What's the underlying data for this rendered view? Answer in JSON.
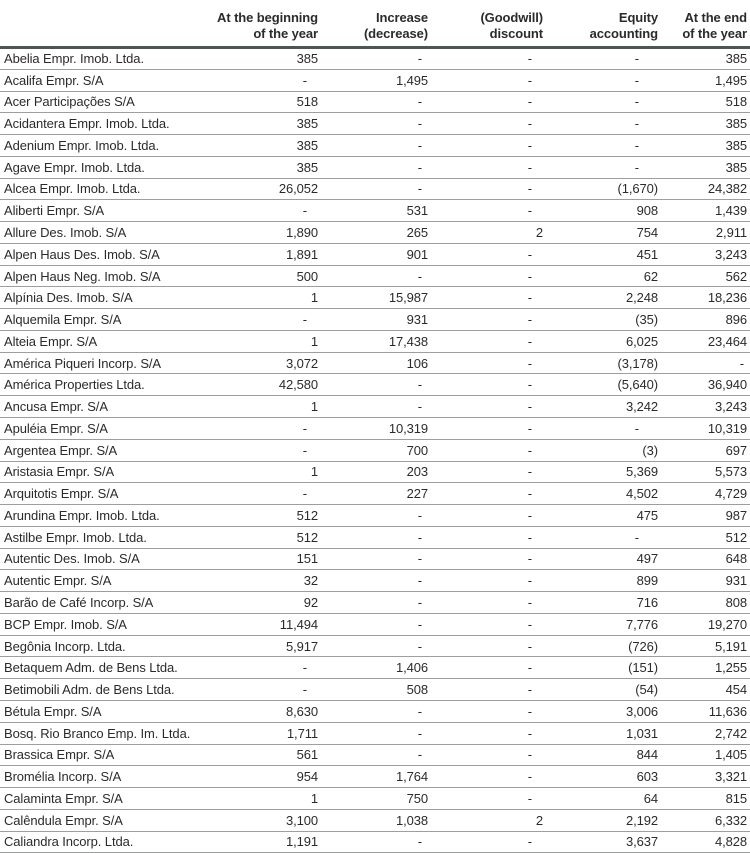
{
  "colors": {
    "text": "#2b2b2b",
    "header_rule": "#4d5751",
    "row_rule": "#9aa09e",
    "bg": "#ffffff"
  },
  "table": {
    "headers": {
      "name": "",
      "beginning": "At the beginning\nof the year",
      "increase": "Increase\n(decrease)",
      "goodwill": "(Goodwill)\ndiscount",
      "equity": "Equity\naccounting",
      "end": "At the end\nof the year"
    },
    "rows": [
      {
        "name": "Abelia Empr. Imob. Ltda.",
        "values": [
          "385",
          "-",
          "-",
          "-",
          "385"
        ]
      },
      {
        "name": "Acalifa Empr. S/A",
        "values": [
          "-",
          "1,495",
          "-",
          "-",
          "1,495"
        ]
      },
      {
        "name": "Acer Participações S/A",
        "values": [
          "518",
          "-",
          "-",
          "-",
          "518"
        ]
      },
      {
        "name": "Acidantera Empr. Imob. Ltda.",
        "values": [
          "385",
          "-",
          "-",
          "-",
          "385"
        ]
      },
      {
        "name": "Adenium Empr. Imob. Ltda.",
        "values": [
          "385",
          "-",
          "-",
          "-",
          "385"
        ]
      },
      {
        "name": "Agave Empr. Imob. Ltda.",
        "values": [
          "385",
          "-",
          "-",
          "-",
          "385"
        ]
      },
      {
        "name": "Alcea Empr. Imob. Ltda.",
        "values": [
          "26,052",
          "-",
          "-",
          "(1,670)",
          "24,382"
        ]
      },
      {
        "name": "Aliberti Empr. S/A",
        "values": [
          "-",
          "531",
          "-",
          "908",
          "1,439"
        ]
      },
      {
        "name": "Allure Des. Imob. S/A",
        "values": [
          "1,890",
          "265",
          "2",
          "754",
          "2,911"
        ]
      },
      {
        "name": "Alpen Haus Des. Imob. S/A",
        "values": [
          "1,891",
          "901",
          "-",
          "451",
          "3,243"
        ]
      },
      {
        "name": "Alpen Haus Neg. Imob. S/A",
        "values": [
          "500",
          "-",
          "-",
          "62",
          "562"
        ]
      },
      {
        "name": "Alpínia Des. Imob. S/A",
        "values": [
          "1",
          "15,987",
          "-",
          "2,248",
          "18,236"
        ]
      },
      {
        "name": "Alquemila Empr. S/A",
        "values": [
          "-",
          "931",
          "-",
          "(35)",
          "896"
        ]
      },
      {
        "name": "Alteia Empr. S/A",
        "values": [
          "1",
          "17,438",
          "-",
          "6,025",
          "23,464"
        ]
      },
      {
        "name": "América Piqueri Incorp. S/A",
        "values": [
          "3,072",
          "106",
          "-",
          "(3,178)",
          "-"
        ]
      },
      {
        "name": "América Properties Ltda.",
        "values": [
          "42,580",
          "-",
          "-",
          "(5,640)",
          "36,940"
        ]
      },
      {
        "name": "Ancusa Empr. S/A",
        "values": [
          "1",
          "-",
          "-",
          "3,242",
          "3,243"
        ]
      },
      {
        "name": "Apuléia Empr. S/A",
        "values": [
          "-",
          "10,319",
          "-",
          "-",
          "10,319"
        ]
      },
      {
        "name": "Argentea Empr. S/A",
        "values": [
          "-",
          "700",
          "-",
          "(3)",
          "697"
        ]
      },
      {
        "name": "Aristasia Empr. S/A",
        "values": [
          "1",
          "203",
          "-",
          "5,369",
          "5,573"
        ]
      },
      {
        "name": "Arquitotis Empr. S/A",
        "values": [
          "-",
          "227",
          "-",
          "4,502",
          "4,729"
        ]
      },
      {
        "name": "Arundina Empr. Imob. Ltda.",
        "values": [
          "512",
          "-",
          "-",
          "475",
          "987"
        ]
      },
      {
        "name": "Astilbe Empr. Imob. Ltda.",
        "values": [
          "512",
          "-",
          "-",
          "-",
          "512"
        ]
      },
      {
        "name": "Autentic Des. Imob. S/A",
        "values": [
          "151",
          "-",
          "-",
          "497",
          "648"
        ]
      },
      {
        "name": "Autentic Empr. S/A",
        "values": [
          "32",
          "-",
          "-",
          "899",
          "931"
        ]
      },
      {
        "name": "Barão de Café Incorp. S/A",
        "values": [
          "92",
          "-",
          "-",
          "716",
          "808"
        ]
      },
      {
        "name": "BCP Empr. Imob. S/A",
        "values": [
          "11,494",
          "-",
          "-",
          "7,776",
          "19,270"
        ]
      },
      {
        "name": "Begônia Incorp. Ltda.",
        "values": [
          "5,917",
          "-",
          "-",
          "(726)",
          "5,191"
        ]
      },
      {
        "name": "Betaquem Adm. de Bens Ltda.",
        "values": [
          "-",
          "1,406",
          "-",
          "(151)",
          "1,255"
        ]
      },
      {
        "name": "Betimobili Adm. de Bens Ltda.",
        "values": [
          "-",
          "508",
          "-",
          "(54)",
          "454"
        ]
      },
      {
        "name": "Bétula Empr. S/A",
        "values": [
          "8,630",
          "-",
          "-",
          "3,006",
          "11,636"
        ]
      },
      {
        "name": "Bosq. Rio Branco Emp. Im. Ltda.",
        "values": [
          "1,711",
          "-",
          "-",
          "1,031",
          "2,742"
        ]
      },
      {
        "name": "Brassica Empr. S/A",
        "values": [
          "561",
          "-",
          "-",
          "844",
          "1,405"
        ]
      },
      {
        "name": "Bromélia Incorp. S/A",
        "values": [
          "954",
          "1,764",
          "-",
          "603",
          "3,321"
        ]
      },
      {
        "name": "Calaminta Empr. S/A",
        "values": [
          "1",
          "750",
          "-",
          "64",
          "815"
        ]
      },
      {
        "name": "Calêndula Empr. S/A",
        "values": [
          "3,100",
          "1,038",
          "2",
          "2,192",
          "6,332"
        ]
      },
      {
        "name": "Caliandra Incorp. Ltda.",
        "values": [
          "1,191",
          "-",
          "-",
          "3,637",
          "4,828"
        ]
      }
    ]
  }
}
